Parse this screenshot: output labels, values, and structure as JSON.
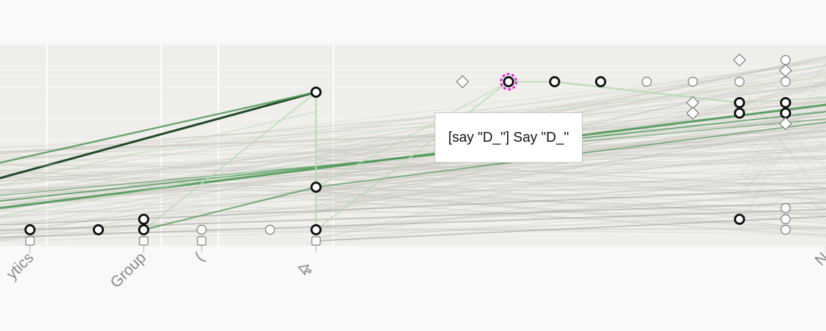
{
  "tooltip": {
    "text": "[say \"D_\"] Say \"D_\""
  },
  "axis_labels": [
    {
      "id": "analytics",
      "text": "ytics"
    },
    {
      "id": "group",
      "text": "Group"
    },
    {
      "id": "paren",
      "text": "("
    },
    {
      "id": "cursor-icon",
      "text": ""
    },
    {
      "id": "right-edge",
      "text": "N"
    }
  ],
  "colors": {
    "plot_background": "#efeeea",
    "page_background": "#f9f9f9",
    "gridline": "#ffffff",
    "highlight_dark": "#1f4a27",
    "highlight_mid": "#4f9a58",
    "highlight_light": "#b8dcb5",
    "muted_line": "#c6c3bd",
    "node_stroke": "#111111",
    "selected_ring": "#d62bd6"
  }
}
